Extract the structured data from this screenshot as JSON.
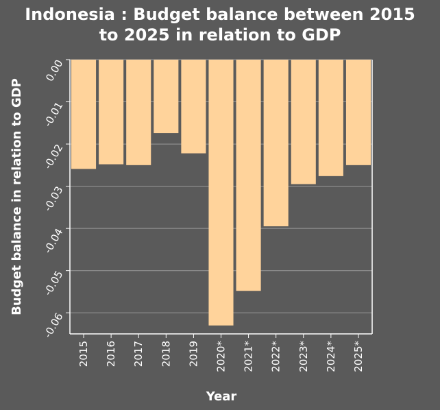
{
  "chart_data": {
    "type": "bar",
    "title": "Indonesia : Budget balance between 2015\nto 2025 in relation to GDP",
    "xlabel": "Year",
    "ylabel": "Budget balance in relation to GDP",
    "categories": [
      "2015",
      "2016",
      "2017",
      "2018",
      "2019",
      "2020*",
      "2021*",
      "2022*",
      "2023*",
      "2024*",
      "2025*"
    ],
    "values": [
      -0.0259,
      -0.0248,
      -0.025,
      -0.0174,
      -0.0222,
      -0.063,
      -0.0548,
      -0.0395,
      -0.0295,
      -0.0276,
      -0.025
    ],
    "ylim": [
      -0.065,
      0
    ],
    "yticks": [
      "0.00",
      "-0.01",
      "-0.02",
      "-0.03",
      "-0.04",
      "-0.05",
      "-0.06"
    ],
    "grid": true,
    "colors": {
      "bar": "#ffd39b",
      "background": "#5a5a5a",
      "grid": "#9a9a9a",
      "axis": "#ffffff"
    }
  }
}
